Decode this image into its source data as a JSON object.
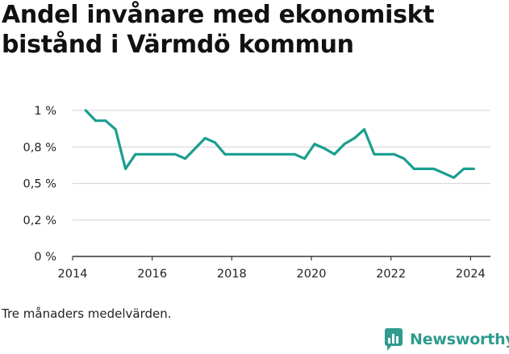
{
  "title": "Andel invånare med ekonomiskt bistånd i Värmdö kommun",
  "note": "Tre månaders medelvärden.",
  "brand": {
    "name": "Newsworthy",
    "color": "#2e9c8e"
  },
  "colors": {
    "line": "#1a9e8f",
    "grid": "#d9d9d9",
    "axis": "#333333"
  },
  "chart_data": {
    "type": "line",
    "title": "Andel invånare med ekonomiskt bistånd i Värmdö kommun",
    "xlabel": "",
    "ylabel": "",
    "xlim": [
      2014.0,
      2024.5
    ],
    "ylim": [
      0,
      1.0
    ],
    "x_ticks": [
      2014,
      2016,
      2018,
      2020,
      2022,
      2024
    ],
    "y_ticks": [
      {
        "value": 0,
        "label": "0 %"
      },
      {
        "value": 0.25,
        "label": "0,2 %"
      },
      {
        "value": 0.5,
        "label": "0,5 %"
      },
      {
        "value": 0.75,
        "label": "0,8 %"
      },
      {
        "value": 1.0,
        "label": "1 %"
      }
    ],
    "grid": "horizontal",
    "series": [
      {
        "x": [
          2014.33,
          2014.58,
          2014.83,
          2015.08,
          2015.33,
          2015.58,
          2015.83,
          2016.08,
          2016.33,
          2016.58,
          2016.83,
          2017.08,
          2017.33,
          2017.58,
          2017.83,
          2018.08,
          2018.33,
          2018.58,
          2018.83,
          2019.08,
          2019.33,
          2019.58,
          2019.83,
          2020.08,
          2020.33,
          2020.58,
          2020.83,
          2021.08,
          2021.33,
          2021.58,
          2021.83,
          2022.08,
          2022.33,
          2022.58,
          2022.83,
          2023.08,
          2023.33,
          2023.58,
          2023.83,
          2024.08
        ],
        "values": [
          1.0,
          0.93,
          0.93,
          0.87,
          0.6,
          0.7,
          0.7,
          0.7,
          0.7,
          0.7,
          0.67,
          0.74,
          0.81,
          0.78,
          0.7,
          0.7,
          0.7,
          0.7,
          0.7,
          0.7,
          0.7,
          0.7,
          0.67,
          0.77,
          0.74,
          0.7,
          0.77,
          0.81,
          0.87,
          0.7,
          0.7,
          0.7,
          0.67,
          0.6,
          0.6,
          0.6,
          0.57,
          0.54,
          0.6,
          0.6
        ]
      }
    ]
  }
}
